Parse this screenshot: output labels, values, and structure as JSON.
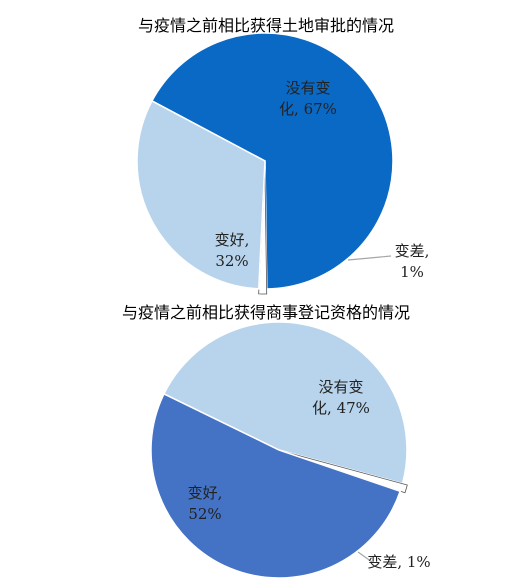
{
  "chart_data": [
    {
      "type": "pie",
      "title": "与疫情之前相比获得土地审批的情况",
      "slices": [
        {
          "label": "没有变化",
          "label_lines": [
            "没有变",
            "化, 67%"
          ],
          "value": 67,
          "color": "#0a69c4"
        },
        {
          "label": "变差",
          "label_lines": [
            "变差,",
            "1%"
          ],
          "value": 1,
          "color": "#ffffff"
        },
        {
          "label": "变好",
          "label_lines": [
            "变好,",
            "32%"
          ],
          "value": 32,
          "color": "#b8d4ec"
        }
      ]
    },
    {
      "type": "pie",
      "title": "与疫情之前相比获得商事登记资格的情况",
      "slices": [
        {
          "label": "没有变化",
          "label_lines": [
            "没有变",
            "化, 47%"
          ],
          "value": 47,
          "color": "#b8d4ec"
        },
        {
          "label": "变差",
          "label_lines": [
            "变差, 1%"
          ],
          "value": 1,
          "color": "#ffffff"
        },
        {
          "label": "变好",
          "label_lines": [
            "变好,",
            "52%"
          ],
          "value": 52,
          "color": "#4472c4"
        }
      ]
    }
  ]
}
